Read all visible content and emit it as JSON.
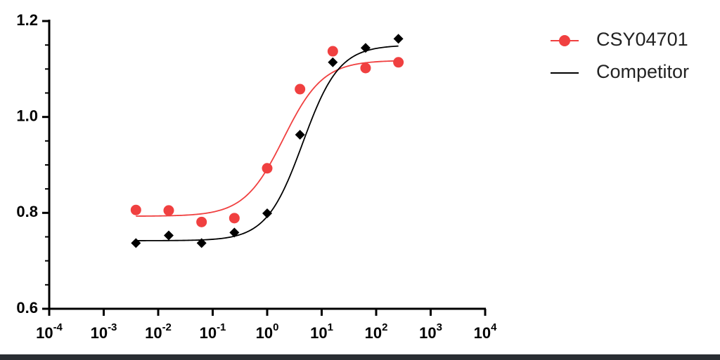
{
  "chart_data": {
    "type": "dose-response",
    "x": [
      0.0039,
      0.0156,
      0.0625,
      0.25,
      1,
      4,
      16,
      64,
      256
    ],
    "series": [
      {
        "name": "CSY04701",
        "color": "#f04040",
        "marker": "circle",
        "values": [
          0.806,
          0.805,
          0.781,
          0.789,
          0.893,
          1.058,
          1.137,
          1.102,
          1.114
        ],
        "curve": {
          "bottom": 0.793,
          "top": 1.118,
          "ec50": 2.0,
          "hill": 1.2
        }
      },
      {
        "name": "Competitor",
        "color": "#000000",
        "marker": "diamond",
        "values": [
          0.737,
          0.753,
          0.737,
          0.759,
          0.799,
          0.963,
          1.114,
          1.144,
          1.163
        ],
        "curve": {
          "bottom": 0.742,
          "top": 1.15,
          "ec50": 4.5,
          "hill": 1.3
        }
      }
    ],
    "xscale": "log",
    "xlim": [
      0.0001,
      10000
    ],
    "xticks": [
      {
        "value": 0.0001,
        "label": "10-4"
      },
      {
        "value": 0.001,
        "label": "10-3"
      },
      {
        "value": 0.01,
        "label": "10-2"
      },
      {
        "value": 0.1,
        "label": "10-1"
      },
      {
        "value": 1,
        "label": "100"
      },
      {
        "value": 10,
        "label": "101"
      },
      {
        "value": 100,
        "label": "102"
      },
      {
        "value": 1000,
        "label": "103"
      },
      {
        "value": 10000,
        "label": "104"
      }
    ],
    "ylim": [
      0.6,
      1.2
    ],
    "yticks": [
      0.6,
      0.8,
      {
        "value": 1,
        "label": "1.0"
      },
      1.2
    ],
    "minor_yticks": [
      0.65,
      0.7,
      0.75,
      0.85,
      0.9,
      0.95,
      1.05,
      1.1,
      1.15
    ],
    "legend": "top-right"
  }
}
